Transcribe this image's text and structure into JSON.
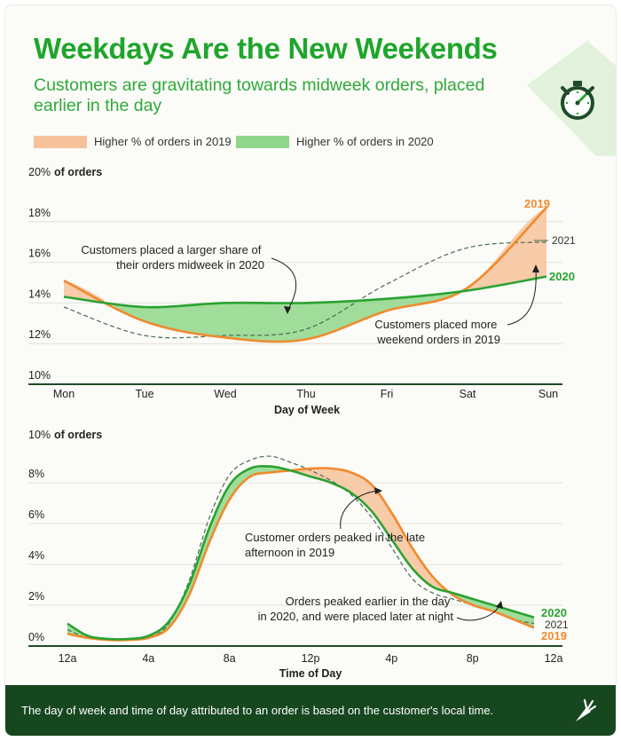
{
  "header": {
    "title": "Weekdays Are the New Weekends",
    "subtitle": "Customers are gravitating towards midweek orders, placed earlier in the day"
  },
  "legend": {
    "label_2019": "Higher % of orders in 2019",
    "label_2020": "Higher % of orders in 2020",
    "color_2019": "#f7c29b",
    "color_2020": "#8fd68a"
  },
  "footer": {
    "note": "The day of week and time of day attributed to an order is based on the customer's local time."
  },
  "chart_data": [
    {
      "type": "line",
      "title": "Day of Week",
      "ylabel_value": "20%",
      "ylabel_unit": "of orders",
      "xlabel": "Day of Week",
      "categories": [
        "Mon",
        "Tue",
        "Wed",
        "Thu",
        "Fri",
        "Sat",
        "Sun"
      ],
      "ylim": [
        10,
        20
      ],
      "yticks": [
        "18%",
        "16%",
        "14%",
        "12%",
        "10%"
      ],
      "series": [
        {
          "name": "2019",
          "color": "#f08a2c",
          "style": "solid",
          "values": [
            15.1,
            13.1,
            12.3,
            12.2,
            13.6,
            14.7,
            18.7
          ]
        },
        {
          "name": "2020",
          "color": "#2aa232",
          "style": "solid",
          "values": [
            14.3,
            13.8,
            14.0,
            14.0,
            14.2,
            14.6,
            15.3
          ]
        },
        {
          "name": "2021",
          "color": "#4a6b52",
          "style": "dashed",
          "values": [
            13.8,
            12.4,
            12.4,
            12.7,
            14.9,
            16.7,
            17.0
          ]
        }
      ],
      "annotations": [
        "Customers placed a larger share of their orders midweek in 2020",
        "Customers placed more weekend orders in 2019"
      ]
    },
    {
      "type": "line",
      "title": "Time of Day",
      "ylabel_value": "10%",
      "ylabel_unit": "of orders",
      "xlabel": "Time of Day",
      "x": [
        0,
        1,
        2,
        3,
        4,
        5,
        6,
        7,
        8,
        9,
        10,
        11,
        12,
        13,
        14,
        15,
        16,
        17,
        18,
        19,
        20,
        21,
        22,
        23
      ],
      "xticks": [
        "12a",
        "4a",
        "8a",
        "12p",
        "4p",
        "8p",
        "12a"
      ],
      "ylim": [
        0,
        10
      ],
      "yticks": [
        "8%",
        "6%",
        "4%",
        "2%",
        "0%"
      ],
      "series": [
        {
          "name": "2019",
          "color": "#f08a2c",
          "style": "solid",
          "values": [
            0.6,
            0.4,
            0.3,
            0.3,
            0.4,
            0.9,
            2.5,
            5.1,
            7.2,
            8.3,
            8.5,
            8.6,
            8.7,
            8.7,
            8.5,
            7.9,
            6.5,
            4.8,
            3.4,
            2.5,
            2.0,
            1.7,
            1.3,
            0.9
          ]
        },
        {
          "name": "2020",
          "color": "#2aa232",
          "style": "solid",
          "values": [
            1.1,
            0.5,
            0.35,
            0.35,
            0.5,
            1.2,
            3.0,
            5.8,
            7.9,
            8.7,
            8.8,
            8.6,
            8.3,
            8.0,
            7.5,
            6.6,
            5.2,
            3.8,
            2.9,
            2.6,
            2.3,
            2.0,
            1.7,
            1.4
          ]
        },
        {
          "name": "2021",
          "color": "#4a6b52",
          "style": "dashed",
          "values": [
            0.8,
            0.4,
            0.3,
            0.3,
            0.4,
            1.1,
            3.2,
            6.3,
            8.4,
            9.1,
            9.3,
            9.0,
            8.6,
            8.1,
            7.4,
            6.3,
            4.8,
            3.3,
            2.6,
            2.3,
            2.0,
            1.7,
            1.3,
            1.1
          ]
        }
      ],
      "annotations": [
        "Customer orders peaked in the late afternoon in 2019",
        "Orders peaked earlier in the day in 2020, and were placed later at night"
      ]
    }
  ]
}
